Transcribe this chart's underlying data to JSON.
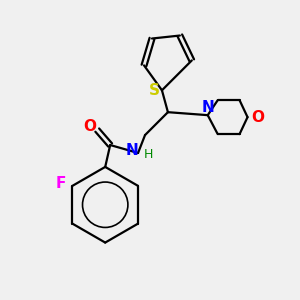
{
  "background_color": "#f0f0f0",
  "fig_size": [
    3.0,
    3.0
  ],
  "dpi": 100,
  "colors": {
    "S": "#cccc00",
    "N": "#0000ff",
    "O": "#ff0000",
    "F": "#ff00ff",
    "H": "#008800",
    "bond": "#000000"
  }
}
